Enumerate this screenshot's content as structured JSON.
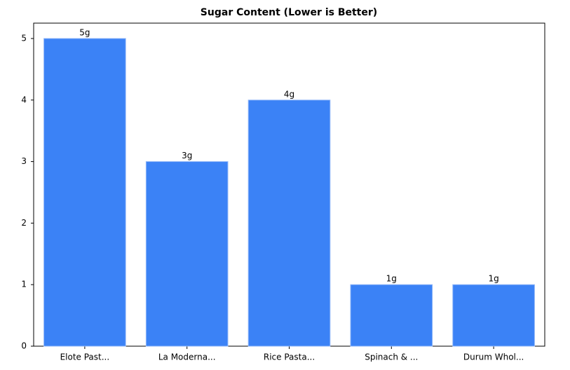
{
  "chart_data": {
    "type": "bar",
    "title": "Sugar Content (Lower is Better)",
    "categories": [
      "Elote Past...",
      "La Moderna...",
      "Rice Pasta...",
      "Spinach & ...",
      "Durum Whol..."
    ],
    "values": [
      5,
      3,
      4,
      1,
      1
    ],
    "value_labels": [
      "5g",
      "3g",
      "4g",
      "1g",
      "1g"
    ],
    "color": "#3b82f6",
    "ylim": [
      0,
      5.25
    ],
    "yticks": [
      0,
      1,
      2,
      3,
      4,
      5
    ],
    "grid": false
  }
}
